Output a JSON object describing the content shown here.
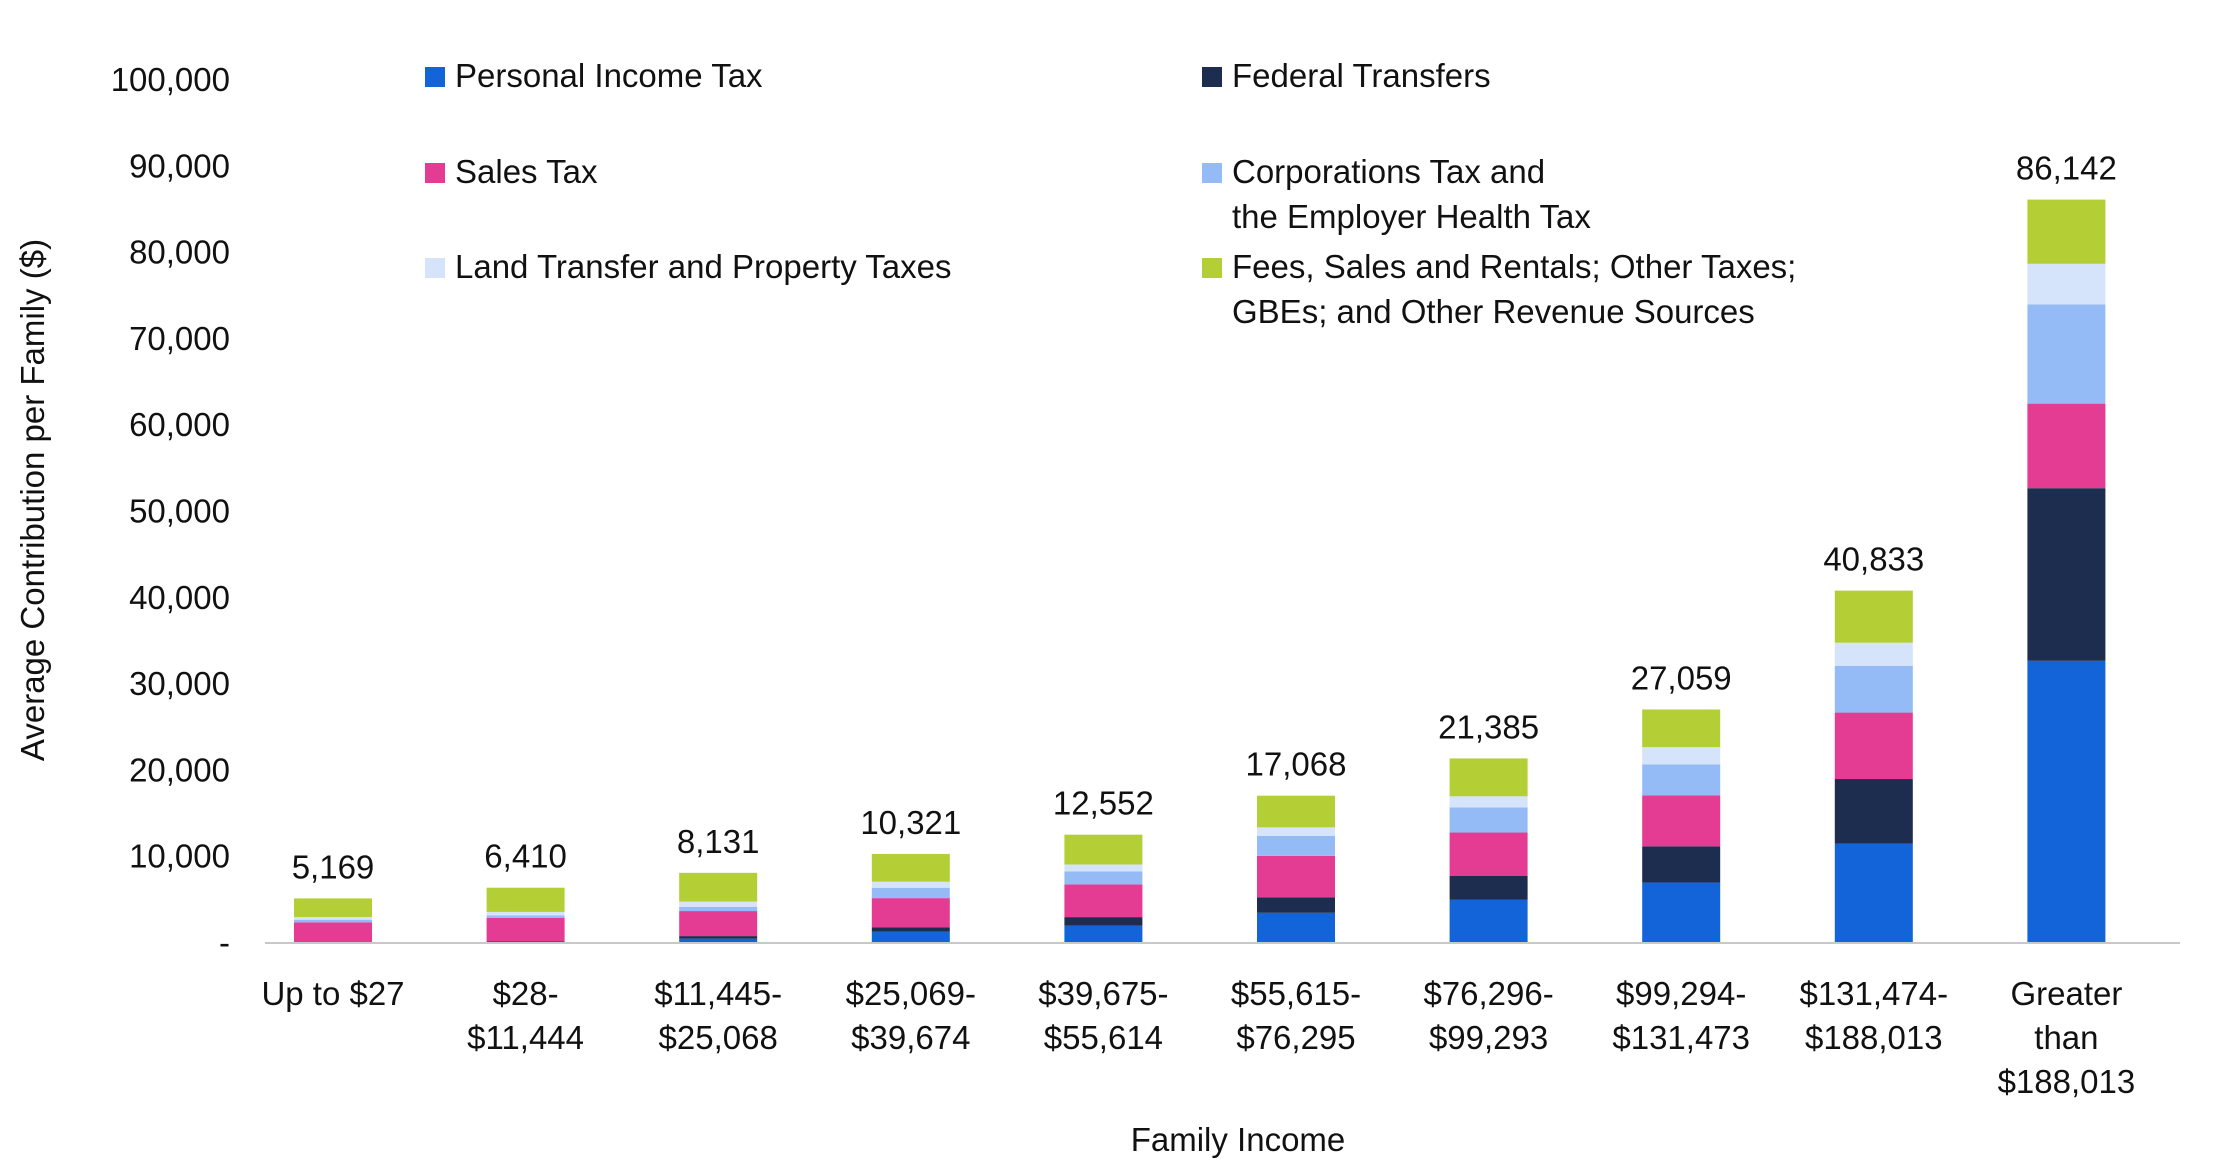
{
  "chart_data": {
    "type": "bar",
    "stacked": true,
    "xlabel": "Family Income",
    "ylabel": "Average Contribution per Family ($)",
    "ylim": [
      0,
      100000
    ],
    "yticks": [
      {
        "value": 0,
        "label": "-"
      },
      {
        "value": 10000,
        "label": "10,000"
      },
      {
        "value": 20000,
        "label": "20,000"
      },
      {
        "value": 30000,
        "label": "30,000"
      },
      {
        "value": 40000,
        "label": "40,000"
      },
      {
        "value": 50000,
        "label": "50,000"
      },
      {
        "value": 60000,
        "label": "60,000"
      },
      {
        "value": 70000,
        "label": "70,000"
      },
      {
        "value": 80000,
        "label": "80,000"
      },
      {
        "value": 90000,
        "label": "90,000"
      },
      {
        "value": 100000,
        "label": "100,000"
      }
    ],
    "grid": false,
    "legend_position": "top",
    "categories": [
      [
        "Up to $27"
      ],
      [
        "$28-",
        "$11,444"
      ],
      [
        "$11,445-",
        "$25,068"
      ],
      [
        "$25,069-",
        "$39,674"
      ],
      [
        "$39,675-",
        "$55,614"
      ],
      [
        "$55,615-",
        "$76,295"
      ],
      [
        "$76,296-",
        "$99,293"
      ],
      [
        "$99,294-",
        "$131,473"
      ],
      [
        "$131,474-",
        "$188,013"
      ],
      [
        "Greater",
        "than",
        "$188,013"
      ]
    ],
    "totals": [
      "5,169",
      "6,410",
      "8,131",
      "10,321",
      "12,552",
      "17,068",
      "21,385",
      "27,059",
      "40,833",
      "86,142"
    ],
    "series": [
      {
        "name": [
          "Personal Income Tax"
        ],
        "color": "#1264d8",
        "values": [
          0,
          100,
          500,
          1300,
          2000,
          3500,
          5000,
          7000,
          11500,
          32700
        ]
      },
      {
        "name": [
          "Federal Transfers"
        ],
        "color": "#1c2d4f",
        "values": [
          0,
          100,
          300,
          500,
          1000,
          1800,
          2800,
          4200,
          7500,
          20000
        ]
      },
      {
        "name": [
          "Sales Tax"
        ],
        "color": "#e33c92",
        "values": [
          2400,
          2700,
          2900,
          3400,
          3800,
          4800,
          5000,
          5900,
          7700,
          9800
        ]
      },
      {
        "name": [
          "Corporations Tax and",
          "the Employer Health Tax"
        ],
        "color": "#94bbf5",
        "values": [
          300,
          300,
          500,
          1200,
          1500,
          2300,
          2900,
          3600,
          5400,
          11500
        ]
      },
      {
        "name": [
          "Land Transfer and Property Taxes"
        ],
        "color": "#d5e3fb",
        "values": [
          300,
          400,
          600,
          700,
          800,
          1000,
          1300,
          2000,
          2700,
          4700
        ]
      },
      {
        "name": [
          "Fees, Sales and Rentals; Other Taxes;",
          "GBEs; and Other Revenue Sources"
        ],
        "color": "#b4cf35",
        "values": [
          2169,
          2810,
          3331,
          3221,
          3452,
          3668,
          4385,
          4359,
          6033,
          7442
        ]
      }
    ]
  }
}
